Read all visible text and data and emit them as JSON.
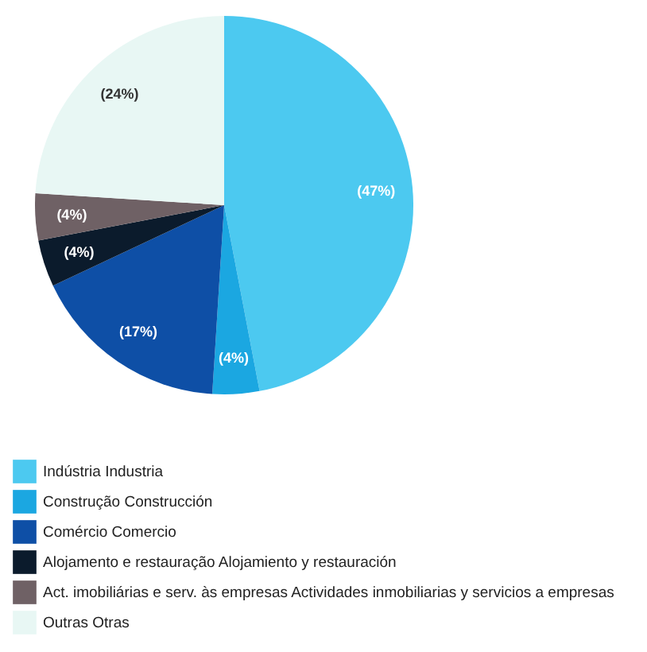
{
  "chart_data": {
    "type": "pie",
    "categories": [
      "Indústria Industria",
      "Construção Construcción",
      "Comércio Comercio",
      "Alojamento e restauração Alojamiento y restauración",
      "Act. imobiliárias e serv. às empresas Actividades inmobiliarias y servicios a empresas",
      "Outras Otras"
    ],
    "values": [
      47,
      4,
      17,
      4,
      4,
      24
    ],
    "colors": [
      "#4cc9f0",
      "#1ba7e1",
      "#0e4fa6",
      "#0b1b2c",
      "#6f6165",
      "#e8f7f4"
    ],
    "value_labels": [
      "(47%)",
      "(4%)",
      "(17%)",
      "(4%)",
      "(4%)",
      "(24%)"
    ],
    "legend": "bottom"
  }
}
